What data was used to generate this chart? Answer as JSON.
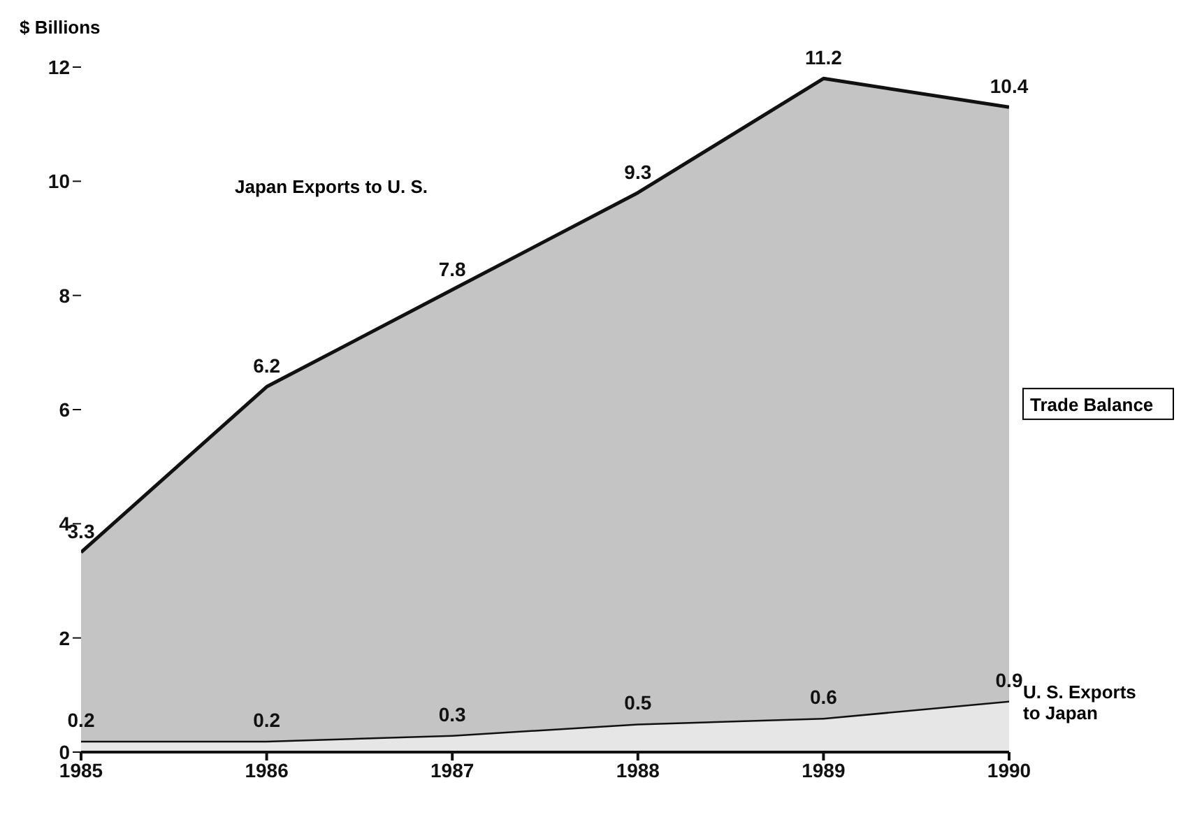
{
  "chart_data": {
    "type": "area",
    "stacked": true,
    "ylabel": "$ Billions",
    "x": [
      1985,
      1986,
      1987,
      1988,
      1989,
      1990
    ],
    "xlim": [
      1985,
      1990
    ],
    "xticks": [
      1985,
      1986,
      1987,
      1988,
      1989,
      1990
    ],
    "ylim": [
      0,
      12
    ],
    "yticks": [
      0,
      2,
      4,
      6,
      8,
      10,
      12
    ],
    "marker": "none",
    "data_labels": true,
    "series": [
      {
        "name": "U. S. Exports to Japan",
        "color": "#e6e6e6",
        "values": [
          0.2,
          0.2,
          0.3,
          0.5,
          0.6,
          0.9
        ]
      },
      {
        "name": "Trade Balance",
        "color": "#c4c4c4",
        "values": [
          3.3,
          6.2,
          7.8,
          9.3,
          11.2,
          10.4
        ]
      }
    ],
    "annotations": [
      "Japan Exports to U. S."
    ]
  }
}
